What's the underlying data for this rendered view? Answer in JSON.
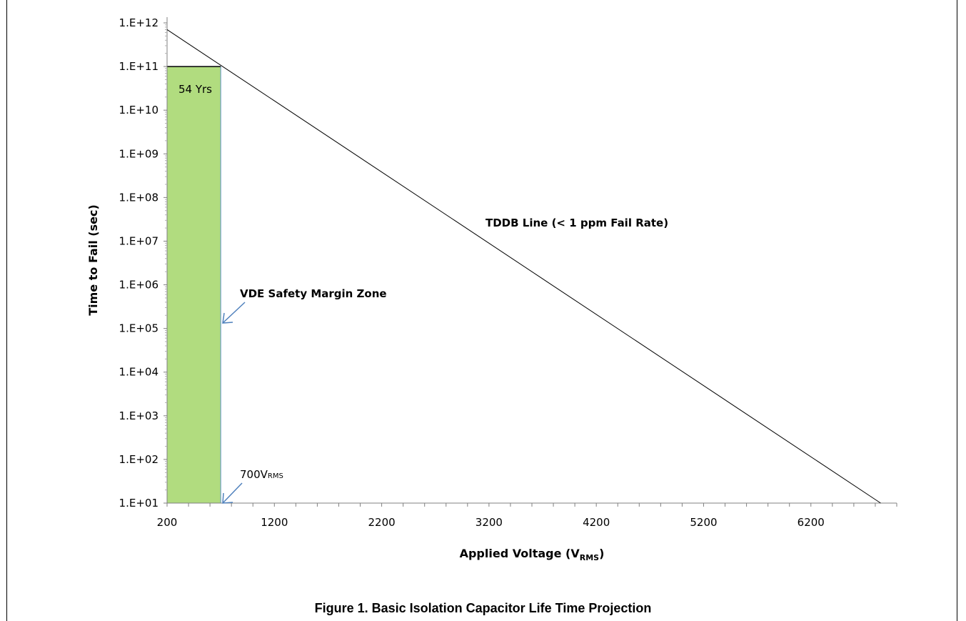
{
  "caption": "Figure 1. Basic Isolation Capacitor Life Time Projection",
  "colors": {
    "zone_fill": "#b1dc7f",
    "zone_stroke": "#5a8fc4",
    "line": "#000000",
    "arrow": "#4f81bd"
  },
  "chart_data": {
    "type": "line",
    "title": "",
    "xlabel_main": "Applied Voltage (V",
    "xlabel_sub": "RMS",
    "xlabel_close": ")",
    "ylabel": "Time to Fail (sec)",
    "xlim": [
      200,
      7000
    ],
    "x_ticks": [
      200,
      1200,
      2200,
      3200,
      4200,
      5200,
      6200
    ],
    "x_tick_labels": [
      "200",
      "1200",
      "2200",
      "3200",
      "4200",
      "5200",
      "6200"
    ],
    "y_scale": "log",
    "ylim": [
      10,
      1000000000000
    ],
    "y_ticks": [
      10.0,
      100.0,
      1000.0,
      10000.0,
      100000.0,
      1000000.0,
      10000000.0,
      100000000.0,
      1000000000.0,
      10000000000.0,
      100000000000.0,
      1000000000000.0
    ],
    "y_tick_labels": [
      "1.E+01",
      "1.E+02",
      "1.E+03",
      "1.E+04",
      "1.E+05",
      "1.E+06",
      "1.E+07",
      "1.E+08",
      "1.E+09",
      "1.E+10",
      "1.E+11",
      "1.E+12"
    ],
    "series": [
      {
        "name": "TDDB Line (< 1 ppm Fail Rate)",
        "x": [
          200,
          6850
        ],
        "y": [
          700000000000,
          10
        ]
      }
    ],
    "zone": {
      "label": "VDE Safety Margin Zone",
      "x": [
        200,
        700
      ],
      "y": [
        10,
        100000000000
      ],
      "inner_label": "54 Yrs"
    },
    "annotations": {
      "zone_label": "VDE Safety Margin Zone",
      "line_label": "TDDB Line (< 1 ppm Fail Rate)",
      "voltage_main": "700V",
      "voltage_sub": "RMS",
      "years": "54 Yrs"
    }
  }
}
